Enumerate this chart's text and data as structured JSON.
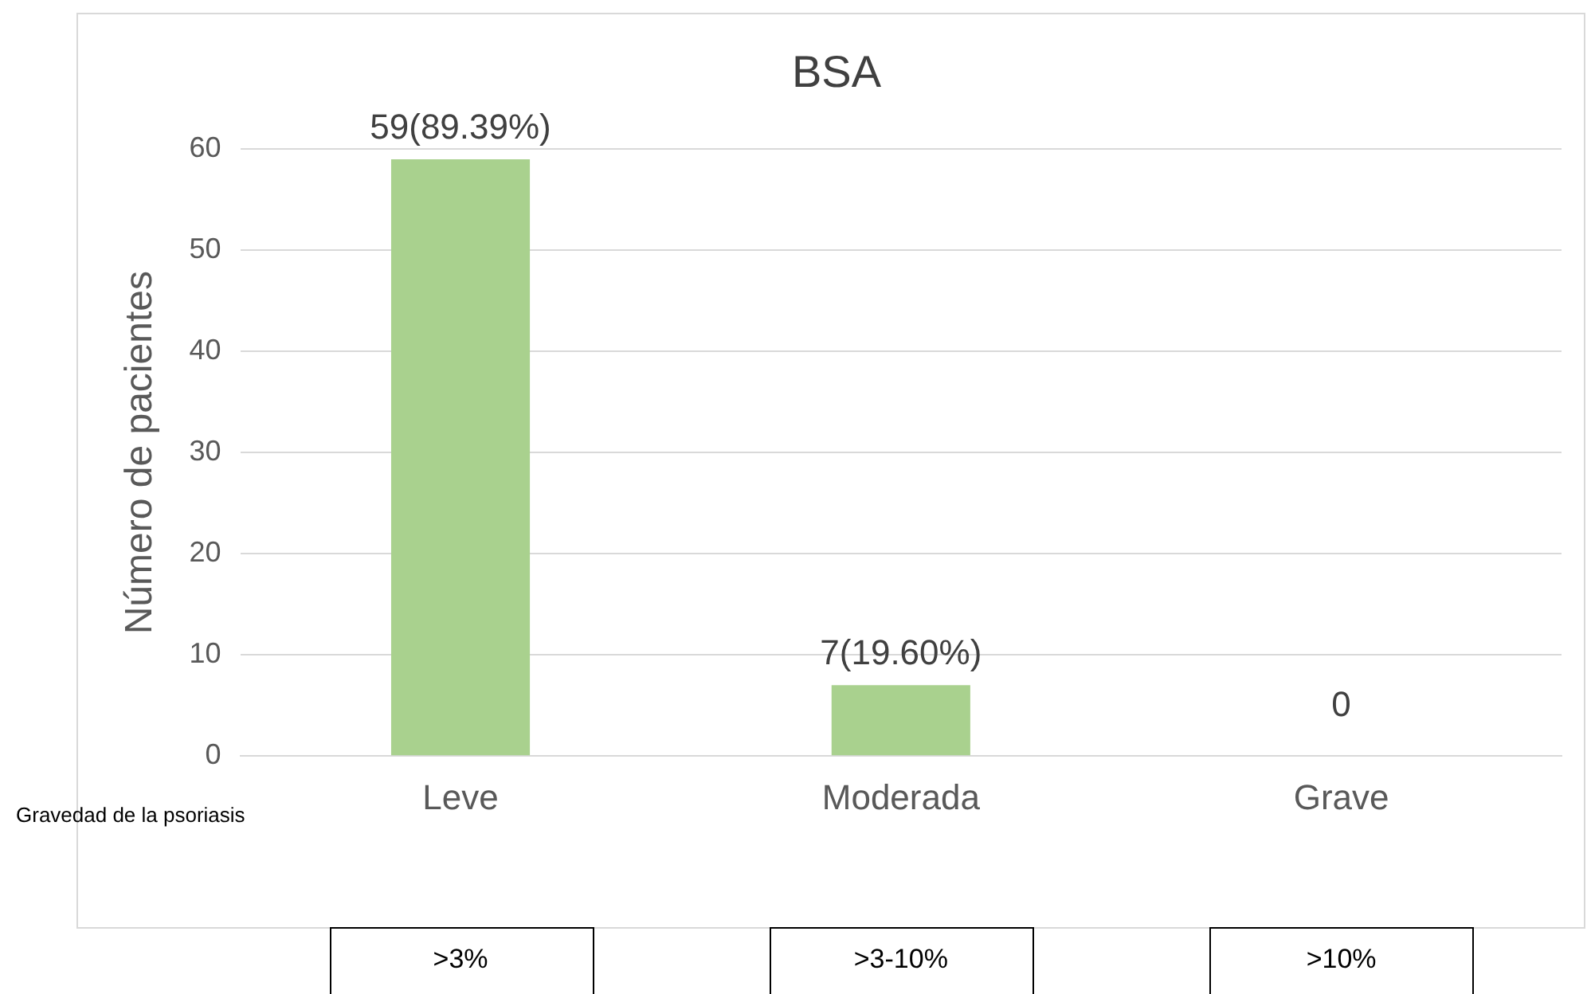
{
  "chart_data": {
    "type": "bar",
    "title": "BSA",
    "ylabel": "Número de pacientes",
    "xlabel": "Gravedad de la psoriasis",
    "categories": [
      "Leve",
      "Moderada",
      "Grave"
    ],
    "values": [
      59,
      7,
      0
    ],
    "color": "#a9d18e",
    "value_labels": [
      "59(89.39%)",
      "7(19.60%)",
      "0"
    ],
    "ylim": [
      0,
      60
    ],
    "yticks": [
      0,
      10,
      20,
      30,
      40,
      50,
      60
    ],
    "grid": "y",
    "legend": false,
    "annotations": [
      ">3%",
      ">3-10%",
      ">10%"
    ]
  }
}
